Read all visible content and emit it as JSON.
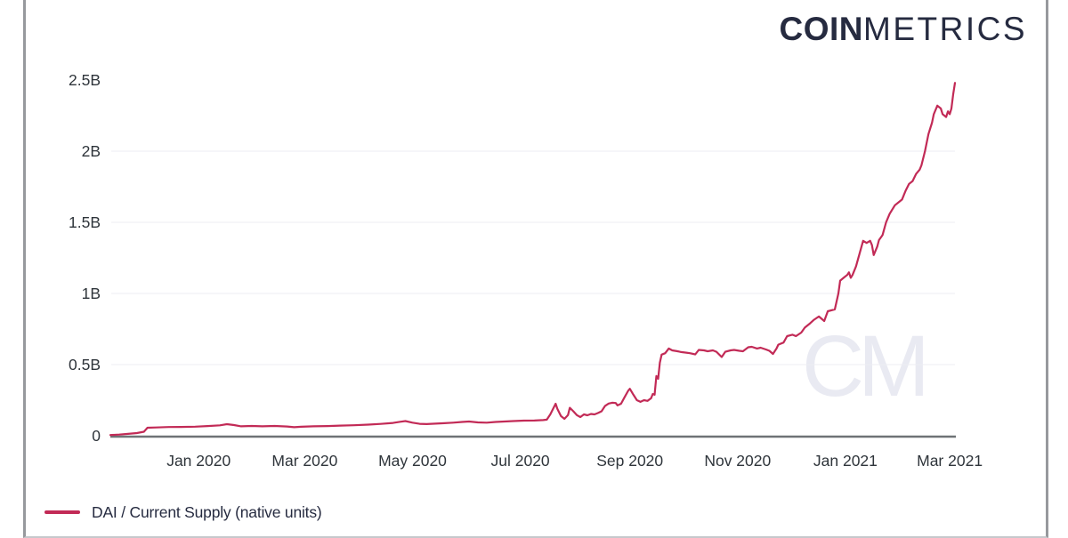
{
  "header": {
    "logo_bold": "COIN",
    "logo_light": "METRICS"
  },
  "watermark_text": "CM",
  "legend": {
    "series_label": "DAI / Current Supply (native units)",
    "swatch_color": "#c22a56"
  },
  "colors": {
    "series_line": "#c22a56",
    "gridline": "#ededf3",
    "axis_line": "#6e7276",
    "tick_label": "#2f353b",
    "logo_text": "#262b40",
    "frame_border": "#97999d",
    "watermark": "#e9eaf2"
  },
  "chart_data": {
    "type": "line",
    "title": "",
    "xlabel": "",
    "ylabel": "",
    "legend_position": "bottom-left",
    "grid": "horizontal-only",
    "x_axis": {
      "type": "time",
      "domain": [
        "2019-11-10",
        "2021-03-05"
      ],
      "ticks": [
        {
          "date": "2020-01-01",
          "label": "Jan 2020"
        },
        {
          "date": "2020-03-01",
          "label": "Mar 2020"
        },
        {
          "date": "2020-05-01",
          "label": "May 2020"
        },
        {
          "date": "2020-07-01",
          "label": "Jul 2020"
        },
        {
          "date": "2020-09-01",
          "label": "Sep 2020"
        },
        {
          "date": "2020-11-01",
          "label": "Nov 2020"
        },
        {
          "date": "2021-01-01",
          "label": "Jan 2021"
        },
        {
          "date": "2021-03-01",
          "label": "Mar 2021"
        }
      ]
    },
    "y_axis": {
      "unit": "billions of native units",
      "domain": [
        0,
        2.5
      ],
      "gridlines": [
        0.5,
        1,
        1.5,
        2
      ],
      "ticks": [
        {
          "value": 0,
          "label": "0"
        },
        {
          "value": 0.5,
          "label": "0.5B"
        },
        {
          "value": 1,
          "label": "1B"
        },
        {
          "value": 1.5,
          "label": "1.5B"
        },
        {
          "value": 2,
          "label": "2B"
        },
        {
          "value": 2.5,
          "label": "2.5B"
        }
      ]
    },
    "series": [
      {
        "name": "DAI / Current Supply (native units)",
        "color": "#c22a56",
        "points": [
          [
            "2019-11-12",
            0.005
          ],
          [
            "2019-11-17",
            0.008
          ],
          [
            "2019-11-22",
            0.013
          ],
          [
            "2019-11-27",
            0.019
          ],
          [
            "2019-12-01",
            0.028
          ],
          [
            "2019-12-03",
            0.056
          ],
          [
            "2019-12-08",
            0.058
          ],
          [
            "2019-12-15",
            0.061
          ],
          [
            "2019-12-22",
            0.062
          ],
          [
            "2019-12-30",
            0.064
          ],
          [
            "2020-01-06",
            0.068
          ],
          [
            "2020-01-13",
            0.073
          ],
          [
            "2020-01-17",
            0.081
          ],
          [
            "2020-01-21",
            0.075
          ],
          [
            "2020-01-25",
            0.066
          ],
          [
            "2020-01-31",
            0.069
          ],
          [
            "2020-02-06",
            0.066
          ],
          [
            "2020-02-13",
            0.069
          ],
          [
            "2020-02-20",
            0.065
          ],
          [
            "2020-02-24",
            0.06
          ],
          [
            "2020-02-28",
            0.063
          ],
          [
            "2020-03-06",
            0.066
          ],
          [
            "2020-03-14",
            0.068
          ],
          [
            "2020-03-21",
            0.071
          ],
          [
            "2020-03-29",
            0.074
          ],
          [
            "2020-04-06",
            0.078
          ],
          [
            "2020-04-13",
            0.083
          ],
          [
            "2020-04-20",
            0.09
          ],
          [
            "2020-04-24",
            0.098
          ],
          [
            "2020-04-27",
            0.103
          ],
          [
            "2020-05-01",
            0.092
          ],
          [
            "2020-05-05",
            0.084
          ],
          [
            "2020-05-09",
            0.082
          ],
          [
            "2020-05-14",
            0.085
          ],
          [
            "2020-05-19",
            0.088
          ],
          [
            "2020-05-24",
            0.092
          ],
          [
            "2020-05-29",
            0.097
          ],
          [
            "2020-06-02",
            0.1
          ],
          [
            "2020-06-07",
            0.094
          ],
          [
            "2020-06-12",
            0.092
          ],
          [
            "2020-06-17",
            0.097
          ],
          [
            "2020-06-22",
            0.1
          ],
          [
            "2020-06-27",
            0.103
          ],
          [
            "2020-07-03",
            0.106
          ],
          [
            "2020-07-09",
            0.107
          ],
          [
            "2020-07-14",
            0.11
          ],
          [
            "2020-07-16",
            0.113
          ],
          [
            "2020-07-18",
            0.15
          ],
          [
            "2020-07-20",
            0.2
          ],
          [
            "2020-07-21",
            0.225
          ],
          [
            "2020-07-22",
            0.188
          ],
          [
            "2020-07-24",
            0.138
          ],
          [
            "2020-07-26",
            0.119
          ],
          [
            "2020-07-28",
            0.145
          ],
          [
            "2020-07-29",
            0.196
          ],
          [
            "2020-07-31",
            0.172
          ],
          [
            "2020-08-02",
            0.145
          ],
          [
            "2020-08-04",
            0.131
          ],
          [
            "2020-08-06",
            0.15
          ],
          [
            "2020-08-08",
            0.144
          ],
          [
            "2020-08-10",
            0.153
          ],
          [
            "2020-08-12",
            0.15
          ],
          [
            "2020-08-14",
            0.16
          ],
          [
            "2020-08-16",
            0.172
          ],
          [
            "2020-08-18",
            0.21
          ],
          [
            "2020-08-20",
            0.226
          ],
          [
            "2020-08-22",
            0.232
          ],
          [
            "2020-08-24",
            0.23
          ],
          [
            "2020-08-25",
            0.213
          ],
          [
            "2020-08-27",
            0.225
          ],
          [
            "2020-08-29",
            0.27
          ],
          [
            "2020-08-31",
            0.315
          ],
          [
            "2020-09-01",
            0.33
          ],
          [
            "2020-09-03",
            0.288
          ],
          [
            "2020-09-05",
            0.25
          ],
          [
            "2020-09-07",
            0.238
          ],
          [
            "2020-09-09",
            0.25
          ],
          [
            "2020-09-11",
            0.245
          ],
          [
            "2020-09-13",
            0.263
          ],
          [
            "2020-09-14",
            0.294
          ],
          [
            "2020-09-15",
            0.288
          ],
          [
            "2020-09-16",
            0.42
          ],
          [
            "2020-09-17",
            0.4
          ],
          [
            "2020-09-18",
            0.513
          ],
          [
            "2020-09-19",
            0.57
          ],
          [
            "2020-09-21",
            0.58
          ],
          [
            "2020-09-23",
            0.613
          ],
          [
            "2020-09-25",
            0.6
          ],
          [
            "2020-09-28",
            0.594
          ],
          [
            "2020-09-30",
            0.588
          ],
          [
            "2020-10-03",
            0.584
          ],
          [
            "2020-10-05",
            0.58
          ],
          [
            "2020-10-08",
            0.572
          ],
          [
            "2020-10-10",
            0.603
          ],
          [
            "2020-10-13",
            0.6
          ],
          [
            "2020-10-15",
            0.594
          ],
          [
            "2020-10-18",
            0.6
          ],
          [
            "2020-10-20",
            0.59
          ],
          [
            "2020-10-23",
            0.553
          ],
          [
            "2020-10-25",
            0.59
          ],
          [
            "2020-10-28",
            0.6
          ],
          [
            "2020-10-30",
            0.603
          ],
          [
            "2020-11-02",
            0.597
          ],
          [
            "2020-11-04",
            0.594
          ],
          [
            "2020-11-07",
            0.622
          ],
          [
            "2020-11-09",
            0.625
          ],
          [
            "2020-11-12",
            0.613
          ],
          [
            "2020-11-14",
            0.619
          ],
          [
            "2020-11-17",
            0.606
          ],
          [
            "2020-11-19",
            0.597
          ],
          [
            "2020-11-21",
            0.575
          ],
          [
            "2020-11-23",
            0.613
          ],
          [
            "2020-11-24",
            0.64
          ],
          [
            "2020-11-27",
            0.655
          ],
          [
            "2020-11-29",
            0.7
          ],
          [
            "2020-12-02",
            0.71
          ],
          [
            "2020-12-04",
            0.7
          ],
          [
            "2020-12-07",
            0.725
          ],
          [
            "2020-12-09",
            0.76
          ],
          [
            "2020-12-12",
            0.79
          ],
          [
            "2020-12-14",
            0.813
          ],
          [
            "2020-12-17",
            0.838
          ],
          [
            "2020-12-20",
            0.806
          ],
          [
            "2020-12-22",
            0.875
          ],
          [
            "2020-12-26",
            0.888
          ],
          [
            "2020-12-28",
            1.0
          ],
          [
            "2020-12-29",
            1.09
          ],
          [
            "2020-12-31",
            1.11
          ],
          [
            "2021-01-02",
            1.13
          ],
          [
            "2021-01-03",
            1.148
          ],
          [
            "2021-01-04",
            1.11
          ],
          [
            "2021-01-05",
            1.13
          ],
          [
            "2021-01-07",
            1.19
          ],
          [
            "2021-01-09",
            1.28
          ],
          [
            "2021-01-11",
            1.37
          ],
          [
            "2021-01-13",
            1.355
          ],
          [
            "2021-01-15",
            1.37
          ],
          [
            "2021-01-16",
            1.34
          ],
          [
            "2021-01-17",
            1.27
          ],
          [
            "2021-01-19",
            1.33
          ],
          [
            "2021-01-20",
            1.375
          ],
          [
            "2021-01-22",
            1.41
          ],
          [
            "2021-01-24",
            1.5
          ],
          [
            "2021-01-26",
            1.56
          ],
          [
            "2021-01-29",
            1.62
          ],
          [
            "2021-01-31",
            1.64
          ],
          [
            "2021-02-02",
            1.66
          ],
          [
            "2021-02-04",
            1.72
          ],
          [
            "2021-02-06",
            1.77
          ],
          [
            "2021-02-08",
            1.79
          ],
          [
            "2021-02-10",
            1.84
          ],
          [
            "2021-02-12",
            1.87
          ],
          [
            "2021-02-13",
            1.9
          ],
          [
            "2021-02-15",
            2.0
          ],
          [
            "2021-02-17",
            2.12
          ],
          [
            "2021-02-19",
            2.2
          ],
          [
            "2021-02-20",
            2.26
          ],
          [
            "2021-02-22",
            2.32
          ],
          [
            "2021-02-24",
            2.3
          ],
          [
            "2021-02-25",
            2.26
          ],
          [
            "2021-02-27",
            2.24
          ],
          [
            "2021-02-28",
            2.28
          ],
          [
            "2021-03-01",
            2.26
          ],
          [
            "2021-03-02",
            2.3
          ],
          [
            "2021-03-03",
            2.4
          ],
          [
            "2021-03-04",
            2.48
          ]
        ]
      }
    ]
  }
}
